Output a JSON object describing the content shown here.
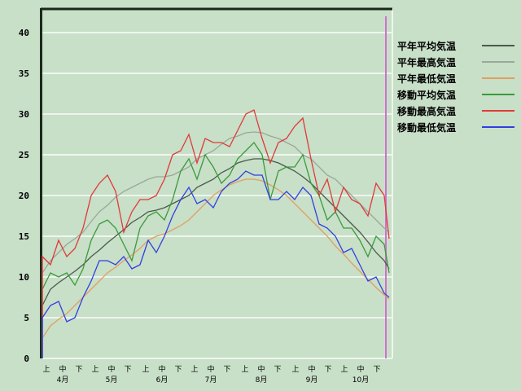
{
  "chart_data": {
    "type": "line",
    "ylim": [
      0,
      43
    ],
    "yticks": [
      0,
      5,
      10,
      15,
      20,
      25,
      30,
      35,
      40
    ],
    "grid": true,
    "legend_position": "right",
    "x_dekad_labels": [
      "上",
      "中",
      "下"
    ],
    "months": [
      "4月",
      "5月",
      "6月",
      "7月",
      "8月",
      "9月",
      "10月"
    ],
    "x": [
      "4/1",
      "4/6",
      "4/11",
      "4/16",
      "4/21",
      "4/26",
      "5/1",
      "5/6",
      "5/11",
      "5/16",
      "5/21",
      "5/26",
      "5/31",
      "6/5",
      "6/10",
      "6/15",
      "6/20",
      "6/25",
      "6/30",
      "7/5",
      "7/10",
      "7/15",
      "7/20",
      "7/25",
      "7/30",
      "8/4",
      "8/9",
      "8/14",
      "8/19",
      "8/24",
      "8/29",
      "9/3",
      "9/8",
      "9/13",
      "9/18",
      "9/23",
      "9/28",
      "10/3",
      "10/8",
      "10/13",
      "10/18",
      "10/23",
      "10/28",
      "10/31"
    ],
    "marker_date": "10/29",
    "marker_color": "#d070d0",
    "series": [
      {
        "name": "平年平均気温",
        "color": "#4a5a4a",
        "values": [
          6.5,
          8.5,
          9.3,
          10,
          10.7,
          11.5,
          12.5,
          13.3,
          14.2,
          15,
          15.8,
          16.7,
          17.3,
          18,
          18.2,
          18.5,
          19,
          19.5,
          20,
          21,
          21.5,
          22,
          22.8,
          23.3,
          24,
          24.3,
          24.5,
          24.5,
          24.3,
          24,
          23.5,
          23,
          22.3,
          21.5,
          20.5,
          19.5,
          18.5,
          17.5,
          16.5,
          15.5,
          14.3,
          13,
          12,
          11
        ]
      },
      {
        "name": "平年最高気温",
        "color": "#9aa89a",
        "values": [
          10.5,
          12,
          13,
          14,
          14.7,
          15.5,
          16.8,
          18,
          18.8,
          19.8,
          20.5,
          21,
          21.5,
          22,
          22.3,
          22.3,
          22.5,
          23,
          23.5,
          24.5,
          25,
          25.5,
          26.3,
          27,
          27.3,
          27.7,
          27.8,
          27.7,
          27.3,
          27,
          26.5,
          26,
          25,
          24.5,
          23.5,
          22.5,
          22,
          21,
          20,
          19,
          18,
          17,
          16,
          15.5
        ]
      },
      {
        "name": "平年最低気温",
        "color": "#e0a060",
        "values": [
          2.5,
          4,
          4.8,
          5.5,
          6.5,
          7.5,
          8.5,
          9.5,
          10.5,
          11.2,
          12,
          12.7,
          13.5,
          14.5,
          15,
          15.3,
          15.8,
          16.3,
          17,
          18,
          19,
          20,
          20.7,
          21.3,
          21.7,
          22,
          22,
          21.8,
          21.3,
          20.7,
          20,
          19,
          18,
          17,
          16,
          15,
          13.8,
          12.8,
          11.7,
          10.7,
          9.7,
          8.7,
          7.8,
          7.3
        ]
      },
      {
        "name": "移動平均気温",
        "color": "#3a9a3a",
        "values": [
          8.5,
          10.5,
          10,
          10.5,
          9,
          11,
          14.5,
          16.5,
          17,
          16,
          14,
          12,
          16,
          17.5,
          18,
          17,
          19.5,
          23,
          24.5,
          22,
          25,
          23.5,
          21.5,
          22.5,
          24.5,
          25.5,
          26.5,
          25,
          19.5,
          23,
          23.5,
          23.5,
          25,
          21.5,
          20,
          17,
          18,
          16,
          16,
          14.5,
          12.5,
          15,
          14,
          10.5
        ]
      },
      {
        "name": "移動最高気温",
        "color": "#e03a3a",
        "values": [
          12.5,
          11.5,
          14.5,
          12.5,
          13.5,
          16,
          20,
          21.5,
          22.5,
          20.5,
          15.5,
          18,
          19.5,
          19.5,
          20,
          22,
          25,
          25.5,
          27.5,
          24,
          27,
          26.5,
          26.5,
          26,
          28,
          30,
          30.5,
          27,
          24,
          26.5,
          27,
          28.5,
          29.5,
          24.5,
          20,
          22,
          18,
          21,
          19.5,
          19,
          17.5,
          21.5,
          20,
          14.7
        ]
      },
      {
        "name": "移動最低気温",
        "color": "#3040e0",
        "values": [
          5,
          6.5,
          7,
          4.5,
          5,
          7.5,
          9.5,
          12,
          12,
          11.5,
          12.5,
          11,
          11.5,
          14.5,
          13,
          15,
          17.5,
          19.5,
          21,
          19,
          19.5,
          18.5,
          20.5,
          21.5,
          22,
          23,
          22.5,
          22.5,
          19.5,
          19.5,
          20.5,
          19.5,
          21,
          20,
          16.5,
          16,
          15,
          13,
          13.5,
          11.5,
          9.5,
          10,
          8,
          7.5
        ]
      }
    ]
  }
}
